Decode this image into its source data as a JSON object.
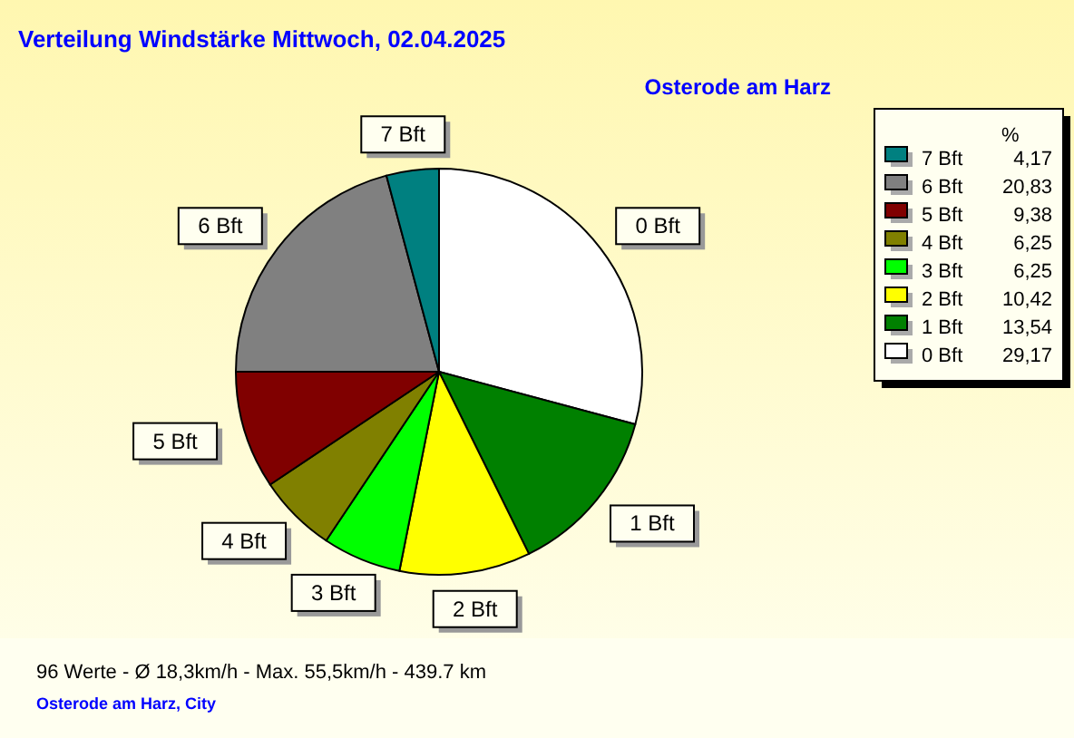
{
  "chart_data": {
    "type": "pie",
    "title": "Verteilung Windstärke  Mittwoch, 02.04.2025",
    "subtitle": "Osterode am Harz",
    "categories": [
      "0 Bft",
      "1 Bft",
      "2 Bft",
      "3 Bft",
      "4 Bft",
      "5 Bft",
      "6 Bft",
      "7 Bft"
    ],
    "values": [
      29.17,
      13.54,
      10.42,
      6.25,
      6.25,
      9.38,
      20.83,
      4.17
    ],
    "value_labels": [
      "29,17",
      "13,54",
      "10,42",
      "6,25",
      "6,25",
      "9,38",
      "20,83",
      "4,17"
    ],
    "colors": [
      "#ffffff",
      "#008000",
      "#ffff00",
      "#00ff00",
      "#808000",
      "#800000",
      "#808080",
      "#008080"
    ],
    "legend": "top right",
    "legend_title": "%",
    "annotations": [
      "96 Werte   -   Ø 18,3km/h  -  Max. 55,5km/h   -   439.7 km",
      "Osterode am Harz, City"
    ]
  }
}
